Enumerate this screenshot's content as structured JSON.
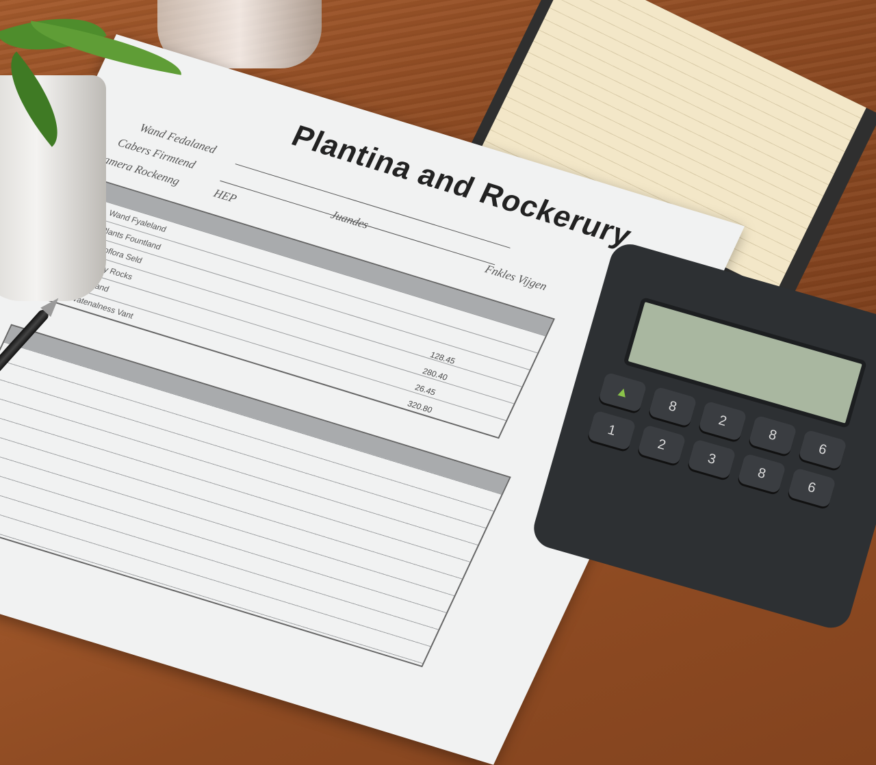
{
  "document": {
    "title": "Plantina and Rockerury",
    "meta_lines": [
      "Wand Fedalaned",
      "Cabers Firmtend",
      "Camera Rockenng"
    ],
    "fields": [
      "HEP",
      "Juandes",
      "Fnkles Vijgen"
    ],
    "table_rows": [
      "Wand Fyaleland",
      "Plants Fountland",
      "Geoflora Seld",
      "Estory Rocks",
      "Wadland",
      "Watenalness Vant"
    ],
    "amounts": [
      "128.45",
      "280.40",
      "26.45",
      "320.80"
    ]
  },
  "calculator": {
    "keys": [
      "▲",
      "8",
      "2",
      "8",
      "6",
      "1",
      "2",
      "3",
      "8",
      "6"
    ]
  },
  "colors": {
    "wood": "#8d4a22",
    "paper": "#f1f2f2",
    "calculator": "#2d3033",
    "lcd": "#a9b7a0"
  }
}
